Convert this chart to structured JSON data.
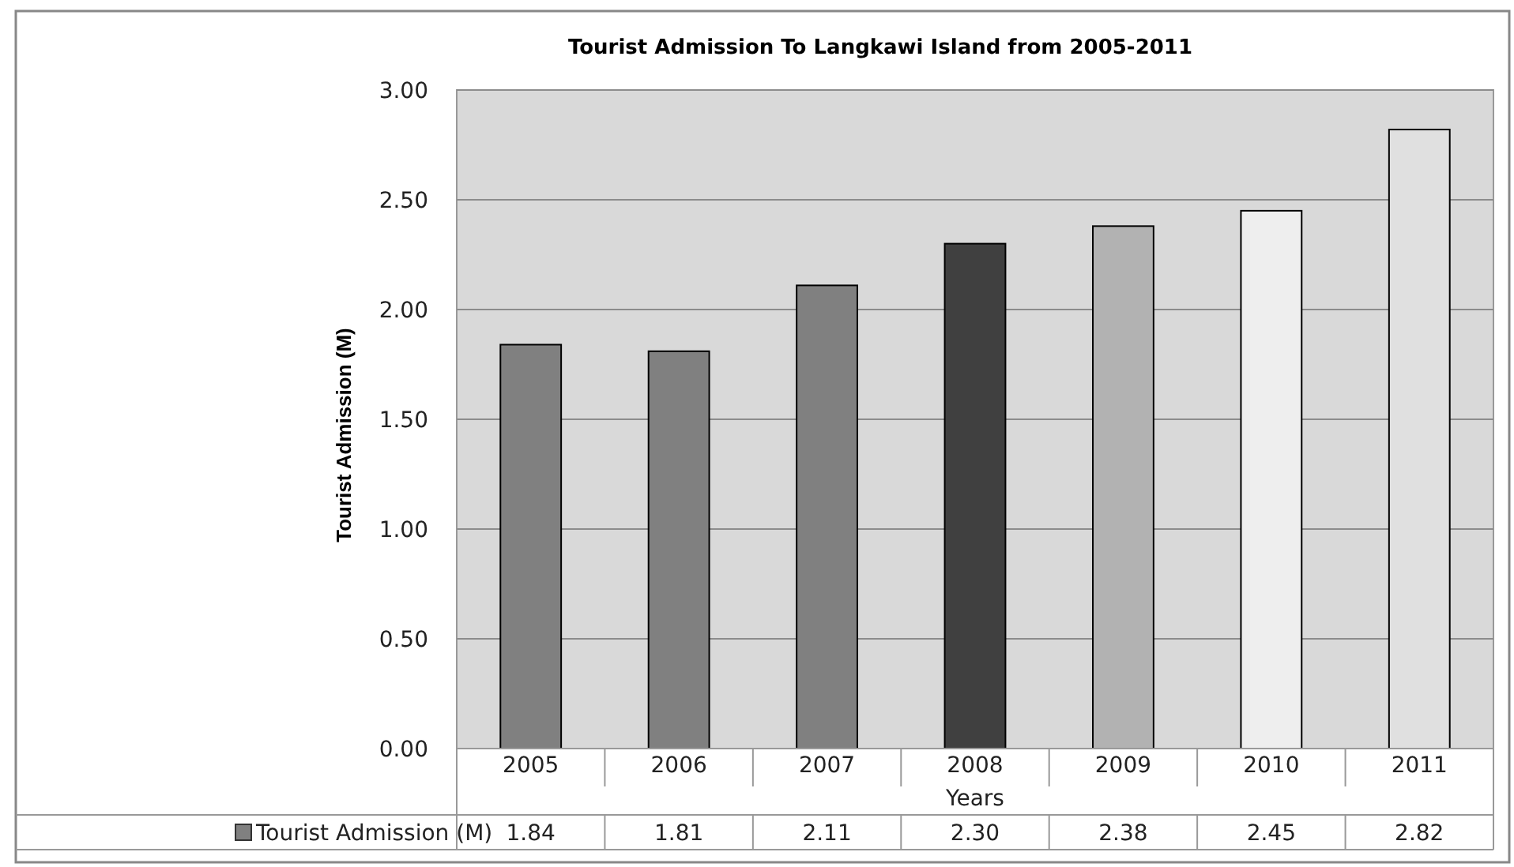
{
  "chart_data": {
    "type": "bar",
    "title": "Tourist Admission To Langkawi Island from 2005-2011",
    "xlabel": "Years",
    "ylabel": "Tourist Admission (M)",
    "categories": [
      "2005",
      "2006",
      "2007",
      "2008",
      "2009",
      "2010",
      "2011"
    ],
    "series": [
      {
        "name": "Tourist Admission (M)",
        "color": "#808080",
        "colors": [
          "#808080",
          "#808080",
          "#808080",
          "#404040",
          "#b2b2b2",
          "#eeeeee",
          "#e0e0e0"
        ],
        "values": [
          1.84,
          1.81,
          2.11,
          2.3,
          2.38,
          2.45,
          2.82
        ]
      }
    ],
    "ylim": [
      0,
      3
    ],
    "yticks": [
      {
        "value": 0,
        "label": "0.00"
      },
      {
        "value": 0.5,
        "label": "0.50"
      },
      {
        "value": 1,
        "label": "1.00"
      },
      {
        "value": 1.5,
        "label": "1.50"
      },
      {
        "value": 2,
        "label": "2.00"
      },
      {
        "value": 2.5,
        "label": "2.50"
      },
      {
        "value": 3,
        "label": "3.00"
      }
    ],
    "value_labels": [
      "1.84",
      "1.81",
      "2.11",
      "2.30",
      "2.38",
      "2.45",
      "2.82"
    ],
    "grid": "y",
    "legend": "bottom"
  }
}
